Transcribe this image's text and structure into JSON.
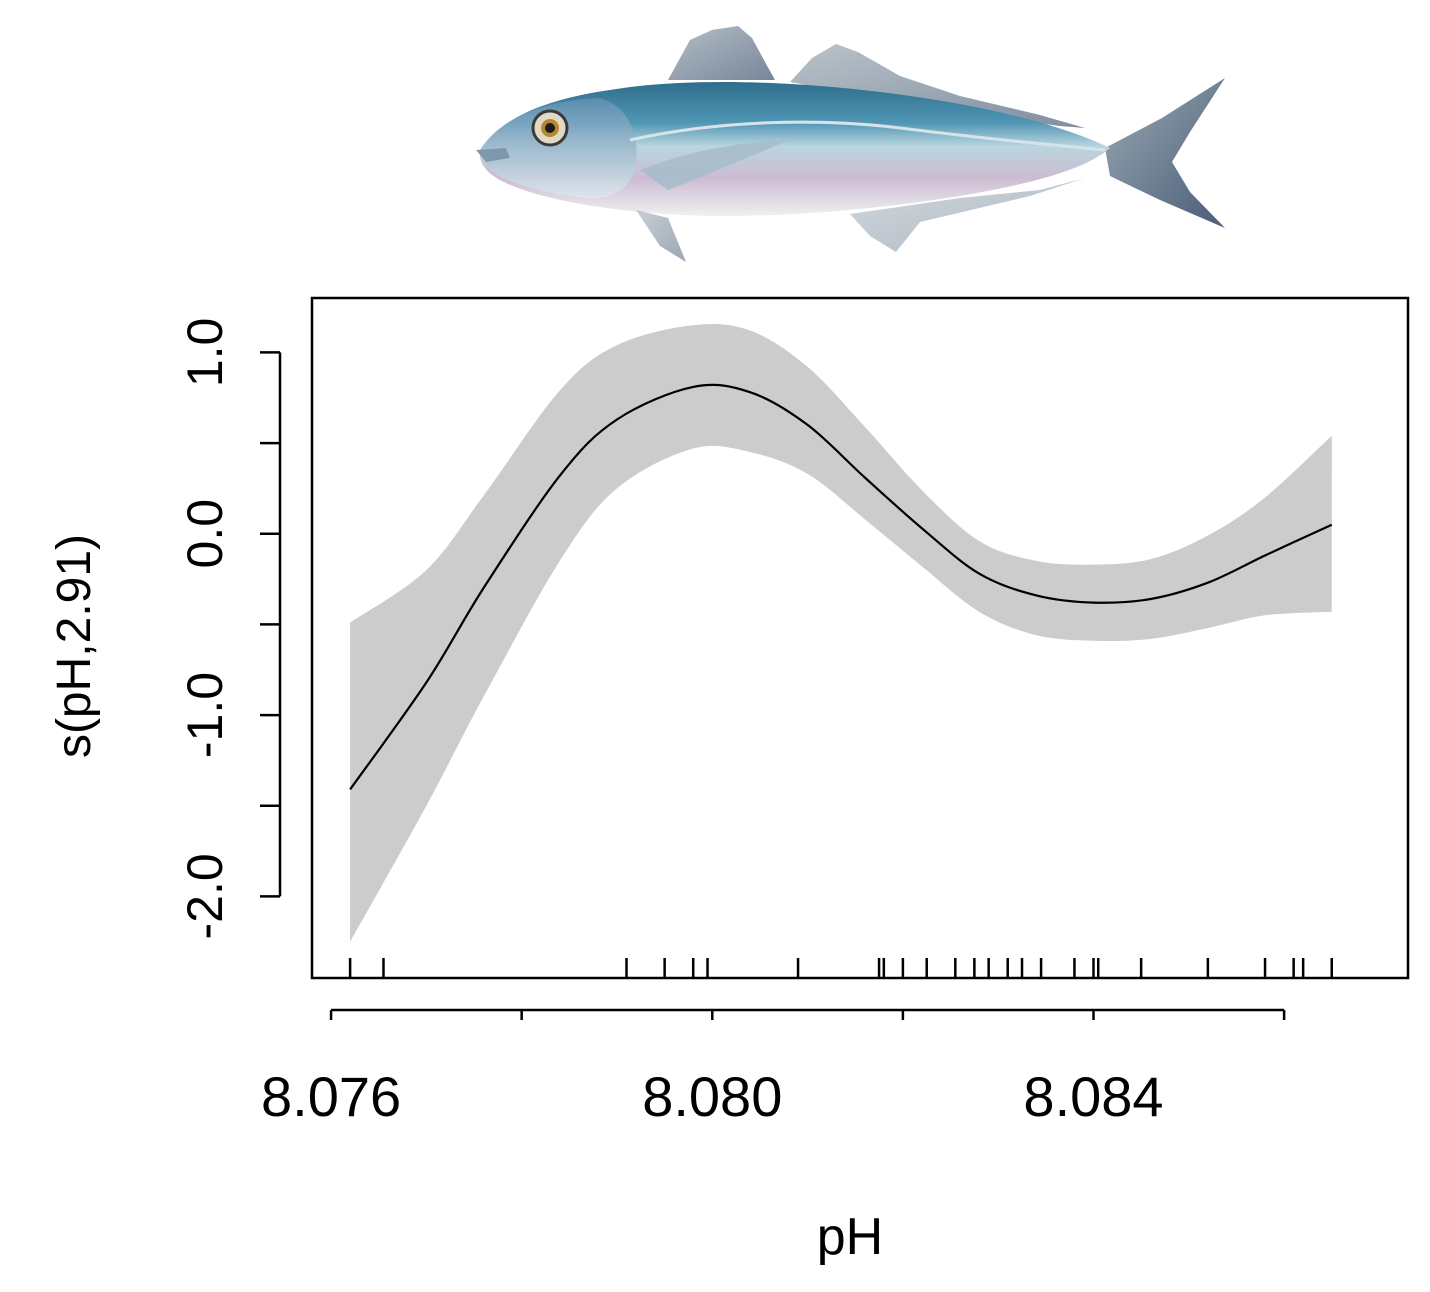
{
  "figure": {
    "illustration": "fish-illustration",
    "accent_colors": {
      "band": "#cccccc",
      "line": "#000000",
      "fish_back": "#3f7f99",
      "fish_belly": "#c9b8cf"
    }
  },
  "chart_data": {
    "type": "line",
    "title": "",
    "xlabel": "pH",
    "ylabel": "s(pH,2.91)",
    "xlim": [
      8.0758,
      8.0873
    ],
    "ylim": [
      -2.45,
      1.3
    ],
    "x_ticks": [
      8.076,
      8.078,
      8.08,
      8.082,
      8.084,
      8.086
    ],
    "x_tick_labels": [
      "8.076",
      "",
      "8.080",
      "",
      "8.084",
      ""
    ],
    "y_ticks": [
      1.0,
      0.5,
      0.0,
      -0.5,
      -1.0,
      -1.5,
      -2.0
    ],
    "y_tick_labels": [
      "1.0",
      "",
      "0.0",
      "",
      "-1.0",
      "",
      "-2.0"
    ],
    "grid": false,
    "legend": "none",
    "series": [
      {
        "x": [
          8.0762,
          8.077,
          8.0776,
          8.0784,
          8.079,
          8.0798,
          8.0804,
          8.081,
          8.0816,
          8.0822,
          8.0828,
          8.0834,
          8.084,
          8.0846,
          8.0852,
          8.0858,
          8.0865
        ],
        "y": [
          -1.41,
          -0.82,
          -0.3,
          0.32,
          0.63,
          0.81,
          0.78,
          0.6,
          0.31,
          0.03,
          -0.22,
          -0.34,
          -0.38,
          -0.36,
          -0.27,
          -0.12,
          0.05
        ],
        "lower": [
          -2.25,
          -1.5,
          -0.9,
          -0.15,
          0.25,
          0.47,
          0.45,
          0.33,
          0.08,
          -0.18,
          -0.43,
          -0.56,
          -0.59,
          -0.58,
          -0.52,
          -0.45,
          -0.43
        ],
        "upper": [
          -0.49,
          -0.2,
          0.21,
          0.79,
          1.04,
          1.15,
          1.12,
          0.92,
          0.59,
          0.24,
          -0.04,
          -0.15,
          -0.17,
          -0.14,
          -0.01,
          0.2,
          0.54
        ]
      }
    ],
    "rug": [
      8.0762,
      8.07655,
      8.0791,
      8.0795,
      8.0798,
      8.07995,
      8.0809,
      8.08175,
      8.0818,
      8.082,
      8.08225,
      8.08255,
      8.08275,
      8.0829,
      8.0831,
      8.08325,
      8.08345,
      8.0838,
      8.084,
      8.08405,
      8.0845,
      8.0852,
      8.0858,
      8.0861,
      8.0862,
      8.0865
    ]
  }
}
